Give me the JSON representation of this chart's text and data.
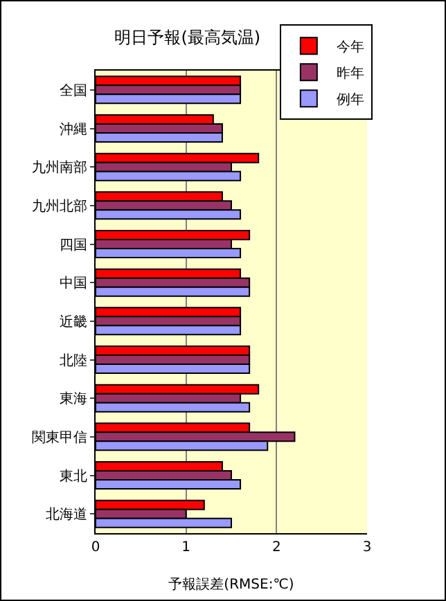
{
  "chart_data": {
    "type": "bar",
    "orientation": "horizontal",
    "title": "明日予報(最高気温)",
    "xlabel": "予報誤差(RMSE:℃)",
    "categories": [
      "全国",
      "沖縄",
      "九州南部",
      "九州北部",
      "四国",
      "中国",
      "近畿",
      "北陸",
      "東海",
      "関東甲信",
      "東北",
      "北海道"
    ],
    "series": [
      {
        "name": "今年",
        "color": "#ff0000",
        "values": [
          1.6,
          1.3,
          1.8,
          1.4,
          1.7,
          1.6,
          1.6,
          1.7,
          1.8,
          1.7,
          1.4,
          1.2
        ]
      },
      {
        "name": "昨年",
        "color": "#993366",
        "values": [
          1.6,
          1.4,
          1.5,
          1.5,
          1.5,
          1.7,
          1.6,
          1.7,
          1.6,
          2.2,
          1.5,
          1.0
        ]
      },
      {
        "name": "例年",
        "color": "#9999ff",
        "values": [
          1.6,
          1.4,
          1.6,
          1.6,
          1.6,
          1.7,
          1.6,
          1.7,
          1.7,
          1.9,
          1.6,
          1.5
        ]
      }
    ],
    "xlim": [
      0,
      3
    ],
    "xticks": [
      0,
      1,
      2,
      3
    ],
    "grid": "x",
    "legend": "top right"
  }
}
